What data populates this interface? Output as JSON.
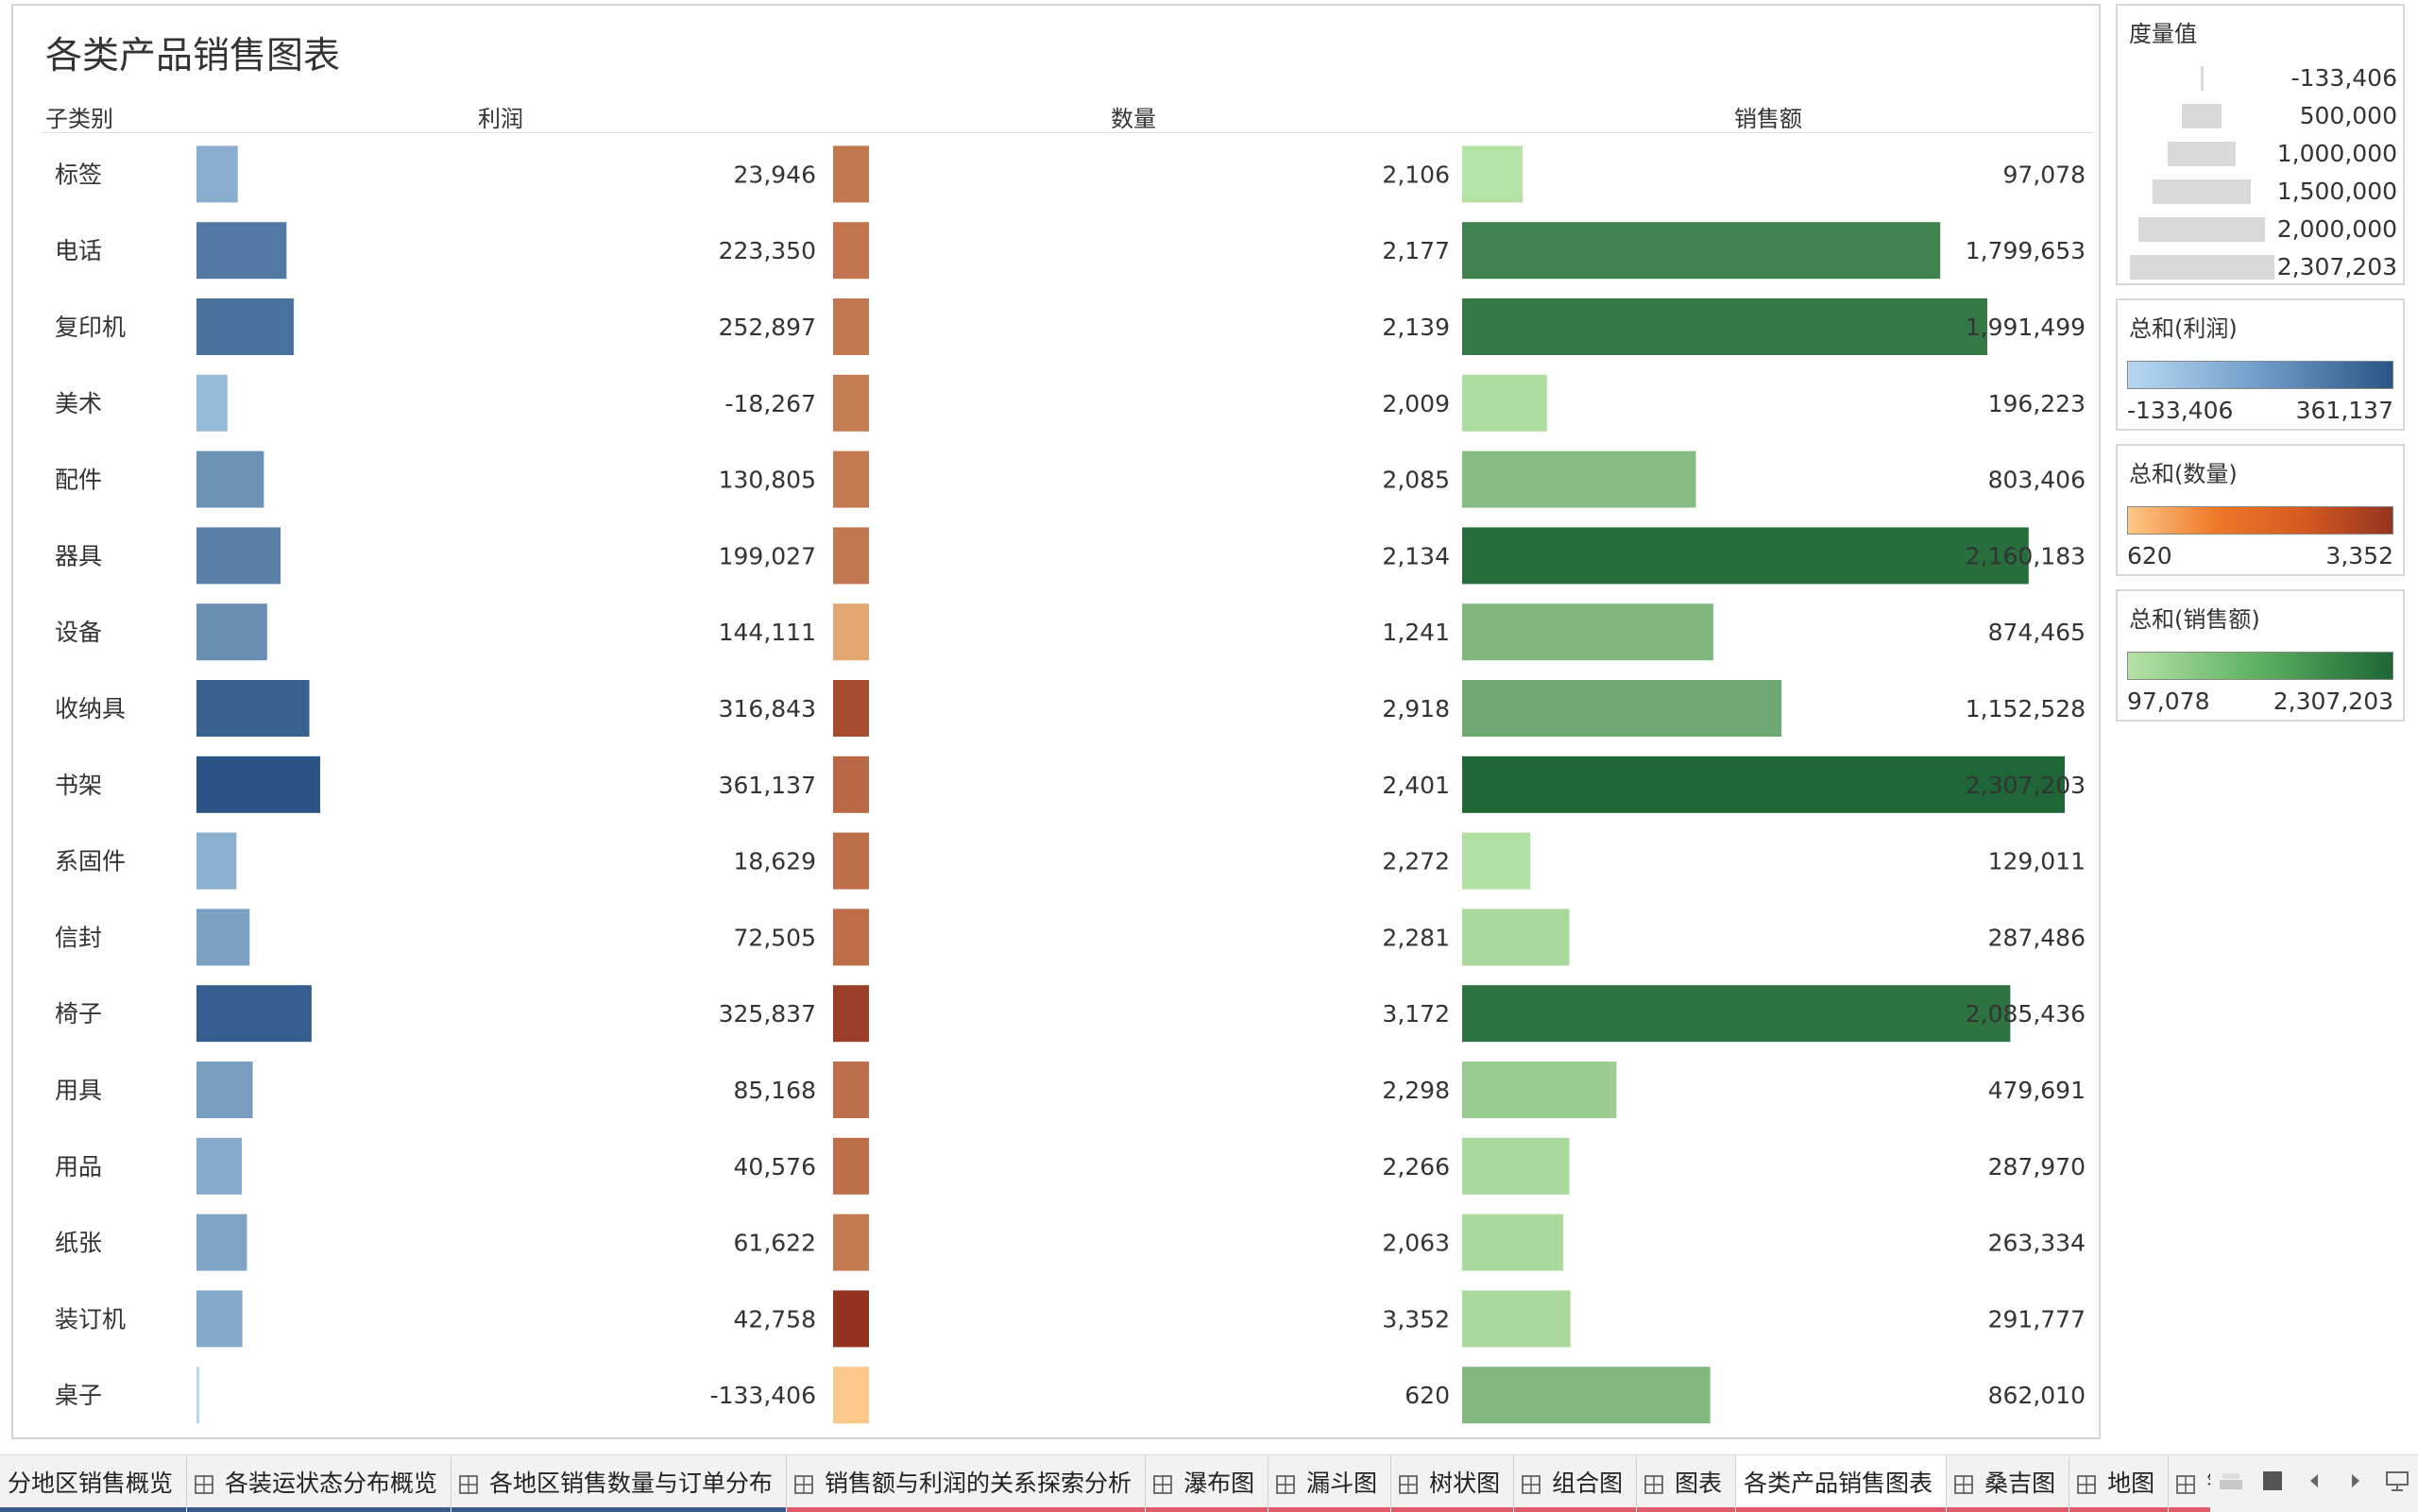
{
  "sheet": {
    "title": "各类产品销售图表"
  },
  "columns": {
    "category": "子类别",
    "profit": "利润",
    "quantity": "数量",
    "sales": "销售额"
  },
  "chart_data": {
    "type": "bar",
    "title": "各类产品销售图表",
    "categories": [
      "标签",
      "电话",
      "复印机",
      "美术",
      "配件",
      "器具",
      "设备",
      "收纳具",
      "书架",
      "系固件",
      "信封",
      "椅子",
      "用具",
      "用品",
      "纸张",
      "装订机",
      "桌子"
    ],
    "series": [
      {
        "name": "利润",
        "values": [
          23946,
          223350,
          252897,
          -18267,
          130805,
          199027,
          144111,
          316843,
          361137,
          18629,
          72505,
          325837,
          85168,
          40576,
          61622,
          42758,
          -133406
        ],
        "labels": [
          "23,946",
          "223,350",
          "252,897",
          "-18,267",
          "130,805",
          "199,027",
          "144,111",
          "316,843",
          "361,137",
          "18,629",
          "72,505",
          "325,837",
          "85,168",
          "40,576",
          "61,622",
          "42,758",
          "-133,406"
        ]
      },
      {
        "name": "数量",
        "values": [
          2106,
          2177,
          2139,
          2009,
          2085,
          2134,
          1241,
          2918,
          2401,
          2272,
          2281,
          3172,
          2298,
          2266,
          2063,
          3352,
          620
        ],
        "labels": [
          "2,106",
          "2,177",
          "2,139",
          "2,009",
          "2,085",
          "2,134",
          "1,241",
          "2,918",
          "2,401",
          "2,272",
          "2,281",
          "3,172",
          "2,298",
          "2,266",
          "2,063",
          "3,352",
          "620"
        ]
      },
      {
        "name": "销售额",
        "values": [
          97078,
          1799653,
          1991499,
          196223,
          803406,
          2160183,
          874465,
          1152528,
          2307203,
          129011,
          287486,
          2085436,
          479691,
          287970,
          263334,
          291777,
          862010
        ],
        "labels": [
          "97,078",
          "1,799,653",
          "1,991,499",
          "196,223",
          "803,406",
          "2,160,183",
          "874,465",
          "1,152,528",
          "2,307,203",
          "129,011",
          "287,486",
          "2,085,436",
          "479,691",
          "287,970",
          "263,334",
          "291,777",
          "862,010"
        ]
      }
    ],
    "size_range": [
      -133406,
      2307203
    ],
    "color_ranges": {
      "profit": {
        "min": -133406,
        "max": 361137,
        "colors": [
          "#b8d8f0",
          "#2a5585"
        ]
      },
      "quantity": {
        "min": 620,
        "max": 3352,
        "colors": [
          "#fcc889",
          "#943420"
        ]
      },
      "sales": {
        "min": 97078,
        "max": 2307203,
        "colors": [
          "#b5e3a6",
          "#1e6636"
        ]
      }
    }
  },
  "legends": {
    "size": {
      "title": "度量值",
      "entries": [
        "-133,406",
        "500,000",
        "1,000,000",
        "1,500,000",
        "2,000,000",
        "2,307,203"
      ],
      "entry_values": [
        -133406,
        500000,
        1000000,
        1500000,
        2000000,
        2307203
      ]
    },
    "profit": {
      "title": "总和(利润)",
      "min_label": "-133,406",
      "max_label": "361,137"
    },
    "quantity": {
      "title": "总和(数量)",
      "min_label": "620",
      "max_label": "3,352"
    },
    "sales": {
      "title": "总和(销售额)",
      "min_label": "97,078",
      "max_label": "2,307,203"
    }
  },
  "tabs": [
    {
      "label": "分地区销售概览",
      "icon": "",
      "underline": "#3a5a8c"
    },
    {
      "label": "各装运状态分布概览",
      "icon": "grid-icon",
      "underline": "#3a5a8c"
    },
    {
      "label": "各地区销售数量与订单分布",
      "icon": "grid-icon",
      "underline": "#3a5a8c"
    },
    {
      "label": "销售额与利润的关系探索分析",
      "icon": "grid-icon",
      "underline": "#e05a6a"
    },
    {
      "label": "瀑布图",
      "icon": "grid-icon",
      "underline": "#e05a6a"
    },
    {
      "label": "漏斗图",
      "icon": "grid-icon",
      "underline": "#e05a6a"
    },
    {
      "label": "树状图",
      "icon": "grid-icon",
      "underline": "#e05a6a"
    },
    {
      "label": "组合图",
      "icon": "grid-icon",
      "underline": "#e05a6a"
    },
    {
      "label": "图表",
      "icon": "grid-icon",
      "underline": "#e05a6a"
    },
    {
      "label": "各类产品销售图表",
      "icon": "",
      "underline": "#e05a6a",
      "active": true
    },
    {
      "label": "桑吉图",
      "icon": "grid-icon",
      "underline": "#e05a6a"
    },
    {
      "label": "地图",
      "icon": "grid-icon",
      "underline": "#e05a6a"
    },
    {
      "label": "销",
      "icon": "grid-icon",
      "underline": "#e05a6a"
    }
  ],
  "tab_controls": [
    "show-filmstrip-icon",
    "show-tabs-icon",
    "scroll-left-icon",
    "scroll-right-icon",
    "presentation-icon"
  ]
}
